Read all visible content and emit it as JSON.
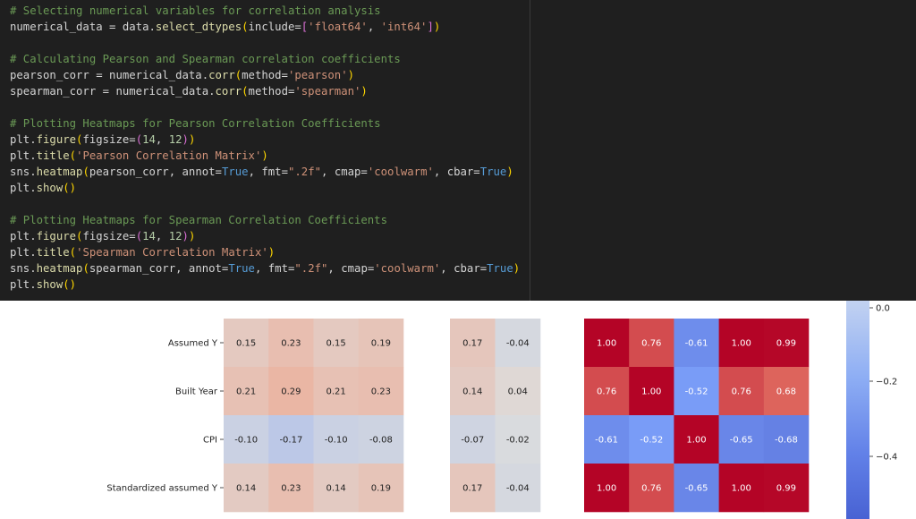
{
  "code": {
    "lines": [
      [
        [
          "cm",
          "# Selecting numerical variables for correlation analysis"
        ]
      ],
      [
        [
          "pl",
          "numerical_data = data."
        ],
        [
          "fn",
          "select_dtypes"
        ],
        [
          "pb",
          "("
        ],
        [
          "pl",
          "include="
        ],
        [
          "pp",
          "["
        ],
        [
          "st",
          "'float64'"
        ],
        [
          "pl",
          ", "
        ],
        [
          "st",
          "'int64'"
        ],
        [
          "pp",
          "]"
        ],
        [
          "pb",
          ")"
        ]
      ],
      [],
      [
        [
          "cm",
          "# Calculating Pearson and Spearman correlation coefficients"
        ]
      ],
      [
        [
          "pl",
          "pearson_corr = numerical_data."
        ],
        [
          "fn",
          "corr"
        ],
        [
          "pb",
          "("
        ],
        [
          "pl",
          "method="
        ],
        [
          "st",
          "'pearson'"
        ],
        [
          "pb",
          ")"
        ]
      ],
      [
        [
          "pl",
          "spearman_corr = numerical_data."
        ],
        [
          "fn",
          "corr"
        ],
        [
          "pb",
          "("
        ],
        [
          "pl",
          "method="
        ],
        [
          "st",
          "'spearman'"
        ],
        [
          "pb",
          ")"
        ]
      ],
      [],
      [
        [
          "cm",
          "# Plotting Heatmaps for Pearson Correlation Coefficients"
        ]
      ],
      [
        [
          "pl",
          "plt."
        ],
        [
          "fn",
          "figure"
        ],
        [
          "pb",
          "("
        ],
        [
          "pl",
          "figsize="
        ],
        [
          "pp",
          "("
        ],
        [
          "nm",
          "14"
        ],
        [
          "pl",
          ", "
        ],
        [
          "nm",
          "12"
        ],
        [
          "pp",
          ")"
        ],
        [
          "pb",
          ")"
        ]
      ],
      [
        [
          "pl",
          "plt."
        ],
        [
          "fn",
          "title"
        ],
        [
          "pb",
          "("
        ],
        [
          "st",
          "'Pearson Correlation Matrix'"
        ],
        [
          "pb",
          ")"
        ]
      ],
      [
        [
          "pl",
          "sns."
        ],
        [
          "fn",
          "heatmap"
        ],
        [
          "pb",
          "("
        ],
        [
          "pl",
          "pearson_corr, annot="
        ],
        [
          "kw",
          "True"
        ],
        [
          "pl",
          ", fmt="
        ],
        [
          "st",
          "\".2f\""
        ],
        [
          "pl",
          ", cmap="
        ],
        [
          "st",
          "'coolwarm'"
        ],
        [
          "pl",
          ", cbar="
        ],
        [
          "kw",
          "True"
        ],
        [
          "pb",
          ")"
        ]
      ],
      [
        [
          "pl",
          "plt."
        ],
        [
          "fn",
          "show"
        ],
        [
          "pb",
          "()"
        ]
      ],
      [],
      [
        [
          "cm",
          "# Plotting Heatmaps for Spearman Correlation Coefficients"
        ]
      ],
      [
        [
          "pl",
          "plt."
        ],
        [
          "fn",
          "figure"
        ],
        [
          "pb",
          "("
        ],
        [
          "pl",
          "figsize="
        ],
        [
          "pp",
          "("
        ],
        [
          "nm",
          "14"
        ],
        [
          "pl",
          ", "
        ],
        [
          "nm",
          "12"
        ],
        [
          "pp",
          ")"
        ],
        [
          "pb",
          ")"
        ]
      ],
      [
        [
          "pl",
          "plt."
        ],
        [
          "fn",
          "title"
        ],
        [
          "pb",
          "("
        ],
        [
          "st",
          "'Spearman Correlation Matrix'"
        ],
        [
          "pb",
          ")"
        ]
      ],
      [
        [
          "pl",
          "sns."
        ],
        [
          "fn",
          "heatmap"
        ],
        [
          "pb",
          "("
        ],
        [
          "pl",
          "spearman_corr, annot="
        ],
        [
          "kw",
          "True"
        ],
        [
          "pl",
          ", fmt="
        ],
        [
          "st",
          "\".2f\""
        ],
        [
          "pl",
          ", cmap="
        ],
        [
          "st",
          "'coolwarm'"
        ],
        [
          "pl",
          ", cbar="
        ],
        [
          "kw",
          "True"
        ],
        [
          "pb",
          ")"
        ]
      ],
      [
        [
          "pl",
          "plt."
        ],
        [
          "fn",
          "show"
        ],
        [
          "pb",
          "()"
        ]
      ]
    ],
    "colors": {
      "comment": "#6a9955",
      "function": "#dcdcaa",
      "string": "#ce9178",
      "keyword": "#569cd6",
      "number": "#b5cea8",
      "bracket_outer": "#ffd700",
      "bracket_inner": "#da70d6",
      "plain": "#d4d4d4",
      "editor_bg": "#1f1f1f"
    }
  },
  "chart_data": {
    "type": "heatmap",
    "title": "",
    "rows": [
      "Assumed Y",
      "Built Year",
      "CPI",
      "Standardized  assumed Y"
    ],
    "groups": [
      {
        "name": "",
        "values": [
          [
            0.15,
            0.23,
            0.15,
            0.19
          ],
          [
            0.21,
            0.29,
            0.21,
            0.23
          ],
          [
            -0.1,
            -0.17,
            -0.1,
            -0.08
          ],
          [
            0.14,
            0.23,
            0.14,
            0.19
          ]
        ]
      },
      {
        "name": "",
        "values": [
          [
            0.17,
            -0.04
          ],
          [
            0.14,
            0.04
          ],
          [
            -0.07,
            -0.02
          ],
          [
            0.17,
            -0.04
          ]
        ]
      },
      {
        "name": "",
        "values": [
          [
            1.0,
            0.76,
            -0.61,
            1.0,
            0.99
          ],
          [
            0.76,
            1.0,
            -0.52,
            0.76,
            0.68
          ],
          [
            -0.61,
            -0.52,
            1.0,
            -0.65,
            -0.68
          ],
          [
            1.0,
            0.76,
            -0.65,
            1.0,
            0.99
          ]
        ]
      }
    ],
    "colorbar": {
      "ticks": [
        "0.0",
        "−0.2",
        "−0.4"
      ]
    },
    "colormap": "coolwarm",
    "vmin": -1,
    "vmax": 1
  }
}
